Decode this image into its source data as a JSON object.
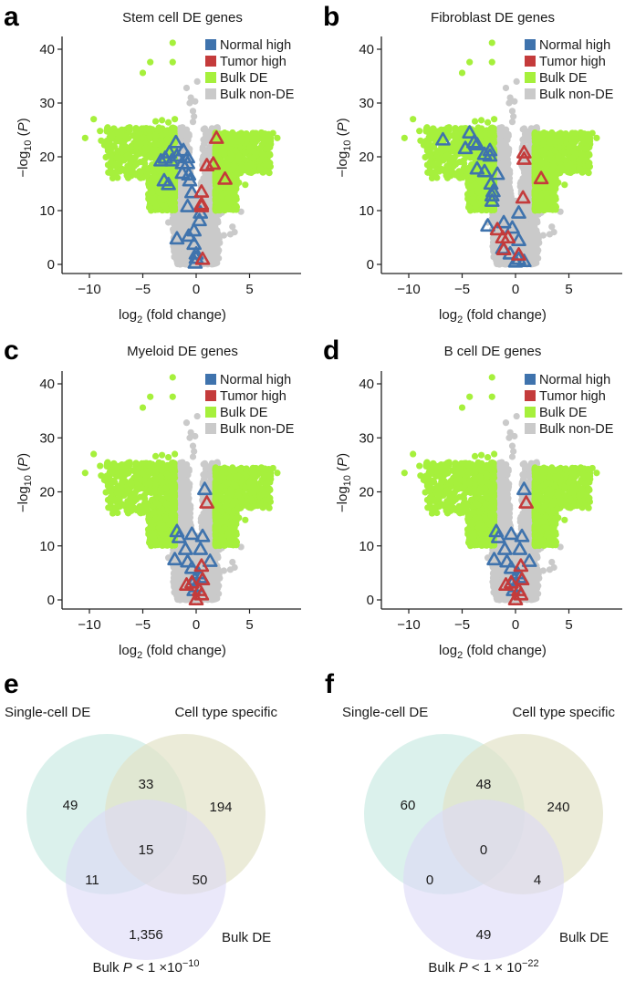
{
  "colors": {
    "normal_high": "#3f73ad",
    "tumor_high": "#c43b3b",
    "bulk_de": "#a6f03c",
    "bulk_non_de": "#cacaca",
    "venn_single_cell": "#cfece5",
    "venn_cell_type": "#e3e3c8",
    "venn_bulk": "#dcd9f7"
  },
  "chart_data": [
    {
      "panel": "a",
      "type": "scatter",
      "title": "Stem cell DE genes",
      "xlabel": "log2 (fold change)",
      "ylabel": "-log10 (P)",
      "xlim": [
        -12,
        9.5
      ],
      "ylim": [
        -1.5,
        43
      ],
      "xticks": [
        -10,
        -5,
        0,
        5
      ],
      "yticks": [
        0,
        10,
        20,
        30,
        40
      ],
      "grid": false,
      "legend": {
        "placement": "top-right",
        "entries": [
          "Normal high",
          "Tumor high",
          "Bulk DE",
          "Bulk non-DE"
        ]
      },
      "series": [
        {
          "name": "Normal high",
          "marker": "triangle-open",
          "points": [
            [
              -1.9,
              22.7
            ],
            [
              -1.2,
              21.2
            ],
            [
              -2.5,
              20.8
            ],
            [
              -1.8,
              20.2
            ],
            [
              -2.9,
              19.8
            ],
            [
              -0.8,
              19.9
            ],
            [
              -2.3,
              19.3
            ],
            [
              -1.3,
              18.8
            ],
            [
              -3.3,
              19.3
            ],
            [
              -0.8,
              18.8
            ],
            [
              -1.3,
              17.0
            ],
            [
              -0.7,
              16.7
            ],
            [
              -3.0,
              15.6
            ],
            [
              -2.6,
              14.9
            ],
            [
              -0.6,
              15.6
            ],
            [
              -0.4,
              13.4
            ],
            [
              -0.8,
              10.8
            ],
            [
              0.4,
              9.6
            ],
            [
              0.3,
              8.2
            ],
            [
              -0.2,
              6.3
            ],
            [
              -0.7,
              5.3
            ],
            [
              -1.8,
              4.8
            ],
            [
              -0.2,
              3.8
            ],
            [
              0.0,
              2.0
            ],
            [
              0.0,
              1.2
            ],
            [
              -0.1,
              0.3
            ]
          ]
        },
        {
          "name": "Tumor high",
          "marker": "triangle-open",
          "points": [
            [
              1.9,
              23.5
            ],
            [
              1.0,
              18.4
            ],
            [
              1.6,
              18.7
            ],
            [
              2.7,
              15.9
            ],
            [
              0.5,
              13.5
            ],
            [
              0.5,
              11.2
            ],
            [
              0.5,
              10.8
            ],
            [
              0.6,
              1.0
            ]
          ]
        }
      ]
    },
    {
      "panel": "b",
      "type": "scatter",
      "title": "Fibroblast DE genes",
      "xlabel": "log2 (fold change)",
      "ylabel": "-log10 (P)",
      "xlim": [
        -12,
        9.5
      ],
      "ylim": [
        -1.5,
        43
      ],
      "xticks": [
        -10,
        -5,
        0,
        5
      ],
      "yticks": [
        0,
        10,
        20,
        30,
        40
      ],
      "grid": false,
      "legend": {
        "placement": "top-right",
        "entries": [
          "Normal high",
          "Tumor high",
          "Bulk DE",
          "Bulk non-DE"
        ]
      },
      "series": [
        {
          "name": "Normal high",
          "marker": "triangle-open",
          "points": [
            [
              -6.8,
              23.2
            ],
            [
              -4.3,
              24.5
            ],
            [
              -3.9,
              22.7
            ],
            [
              -4.7,
              21.6
            ],
            [
              -3.6,
              22.3
            ],
            [
              -2.4,
              21.2
            ],
            [
              -2.9,
              20.5
            ],
            [
              -2.4,
              20.2
            ],
            [
              -3.6,
              17.8
            ],
            [
              -2.9,
              17.3
            ],
            [
              -1.7,
              16.8
            ],
            [
              -2.3,
              15.0
            ],
            [
              -2.1,
              13.6
            ],
            [
              -2.2,
              12.8
            ],
            [
              -2.2,
              11.8
            ],
            [
              0.3,
              9.6
            ],
            [
              -2.6,
              7.2
            ],
            [
              -1.1,
              7.8
            ],
            [
              -0.3,
              6.8
            ],
            [
              0.3,
              4.5
            ],
            [
              -1.2,
              3.0
            ],
            [
              -0.5,
              2.0
            ],
            [
              0.3,
              1.0
            ],
            [
              0.0,
              0.5
            ],
            [
              0.8,
              0.6
            ]
          ]
        },
        {
          "name": "Tumor high",
          "marker": "triangle-open",
          "points": [
            [
              0.8,
              20.8
            ],
            [
              0.8,
              19.6
            ],
            [
              2.4,
              16.0
            ],
            [
              0.7,
              12.4
            ],
            [
              -1.7,
              6.5
            ],
            [
              -1.2,
              5.0
            ],
            [
              -0.7,
              5.0
            ],
            [
              -1.1,
              2.8
            ],
            [
              0.3,
              1.8
            ]
          ]
        }
      ]
    },
    {
      "panel": "c",
      "type": "scatter",
      "title": "Myeloid DE genes",
      "xlabel": "log2 (fold change)",
      "ylabel": "-log10 (P)",
      "xlim": [
        -12,
        9.5
      ],
      "ylim": [
        -1.5,
        43
      ],
      "xticks": [
        -10,
        -5,
        0,
        5
      ],
      "yticks": [
        0,
        10,
        20,
        30,
        40
      ],
      "grid": false,
      "legend": {
        "placement": "top-right",
        "entries": [
          "Normal high",
          "Tumor high",
          "Bulk DE",
          "Bulk non-DE"
        ]
      },
      "series": [
        {
          "name": "Normal high",
          "marker": "triangle-open",
          "points": [
            [
              0.8,
              20.5
            ],
            [
              -1.8,
              12.7
            ],
            [
              -0.4,
              12.2
            ],
            [
              0.6,
              11.8
            ],
            [
              -1.6,
              11.6
            ],
            [
              -1.0,
              9.4
            ],
            [
              0.4,
              9.4
            ],
            [
              -2.0,
              7.5
            ],
            [
              -0.8,
              7.1
            ],
            [
              1.3,
              7.2
            ],
            [
              -0.4,
              5.9
            ],
            [
              0.2,
              4.9
            ],
            [
              -0.1,
              3.8
            ],
            [
              0.4,
              4.2
            ],
            [
              -0.2,
              1.8
            ],
            [
              0.1,
              2.5
            ]
          ]
        },
        {
          "name": "Tumor high",
          "marker": "triangle-open",
          "points": [
            [
              1.0,
              18.0
            ],
            [
              0.5,
              6.3
            ],
            [
              0.6,
              3.8
            ],
            [
              -0.9,
              2.8
            ],
            [
              -0.4,
              3.2
            ],
            [
              0.3,
              1.8
            ],
            [
              0.5,
              1.0
            ],
            [
              0.0,
              0.1
            ]
          ]
        }
      ]
    },
    {
      "panel": "d",
      "type": "scatter",
      "title": "B cell DE genes",
      "xlabel": "log2 (fold change)",
      "ylabel": "-log10 (P)",
      "xlim": [
        -12,
        9.5
      ],
      "ylim": [
        -1.5,
        43
      ],
      "xticks": [
        -10,
        -5,
        0,
        5
      ],
      "yticks": [
        0,
        10,
        20,
        30,
        40
      ],
      "grid": false,
      "legend": {
        "placement": "top-right",
        "entries": [
          "Normal high",
          "Tumor high",
          "Bulk DE",
          "Bulk non-DE"
        ]
      },
      "series": [
        {
          "name": "Normal high",
          "marker": "triangle-open",
          "points": [
            [
              0.8,
              20.5
            ],
            [
              -1.8,
              12.7
            ],
            [
              -0.4,
              12.2
            ],
            [
              0.6,
              11.8
            ],
            [
              -1.6,
              11.6
            ],
            [
              -1.0,
              9.4
            ],
            [
              0.4,
              9.4
            ],
            [
              -2.0,
              7.5
            ],
            [
              -0.8,
              7.1
            ],
            [
              1.3,
              7.2
            ],
            [
              -0.4,
              5.9
            ],
            [
              0.2,
              4.9
            ],
            [
              -0.1,
              3.8
            ],
            [
              0.4,
              4.2
            ],
            [
              -0.2,
              1.8
            ],
            [
              0.1,
              2.5
            ]
          ]
        },
        {
          "name": "Tumor high",
          "marker": "triangle-open",
          "points": [
            [
              1.0,
              18.0
            ],
            [
              0.5,
              6.3
            ],
            [
              0.6,
              3.8
            ],
            [
              -0.9,
              2.8
            ],
            [
              -0.4,
              3.2
            ],
            [
              0.3,
              1.8
            ],
            [
              0.5,
              1.0
            ],
            [
              0.0,
              0.1
            ]
          ]
        }
      ]
    },
    {
      "panel": "e",
      "type": "venn",
      "sets": [
        "Single-cell DE",
        "Cell type specific",
        "Bulk DE"
      ],
      "regions": {
        "single_only": "49",
        "celltype_only": "194",
        "bulk_only": "1,356",
        "single_celltype": "33",
        "single_bulk": "11",
        "celltype_bulk": "50",
        "all_three": "15"
      },
      "caption_prefix": "Bulk ",
      "caption_italic": "P",
      "caption_rel": " < 1 ×10",
      "caption_exp": "−10"
    },
    {
      "panel": "f",
      "type": "venn",
      "sets": [
        "Single-cell DE",
        "Cell type specific",
        "Bulk DE"
      ],
      "regions": {
        "single_only": "60",
        "celltype_only": "240",
        "bulk_only": "49",
        "single_celltype": "48",
        "single_bulk": "0",
        "celltype_bulk": "4",
        "all_three": "0"
      },
      "caption_prefix": "Bulk ",
      "caption_italic": "P",
      "caption_rel": " < 1 × 10",
      "caption_exp": "−22"
    }
  ],
  "labels": {
    "panels": [
      "a",
      "b",
      "c",
      "d",
      "e",
      "f"
    ],
    "xlabel_main": "log",
    "xlabel_sub": "2",
    "xlabel_rest": " (fold change)",
    "ylabel_main": "−log",
    "ylabel_sub": "10",
    "ylabel_open": " (",
    "ylabel_italic": "P",
    "ylabel_close": ")",
    "tick_minus_10": "−10",
    "tick_minus_5": "−5"
  }
}
